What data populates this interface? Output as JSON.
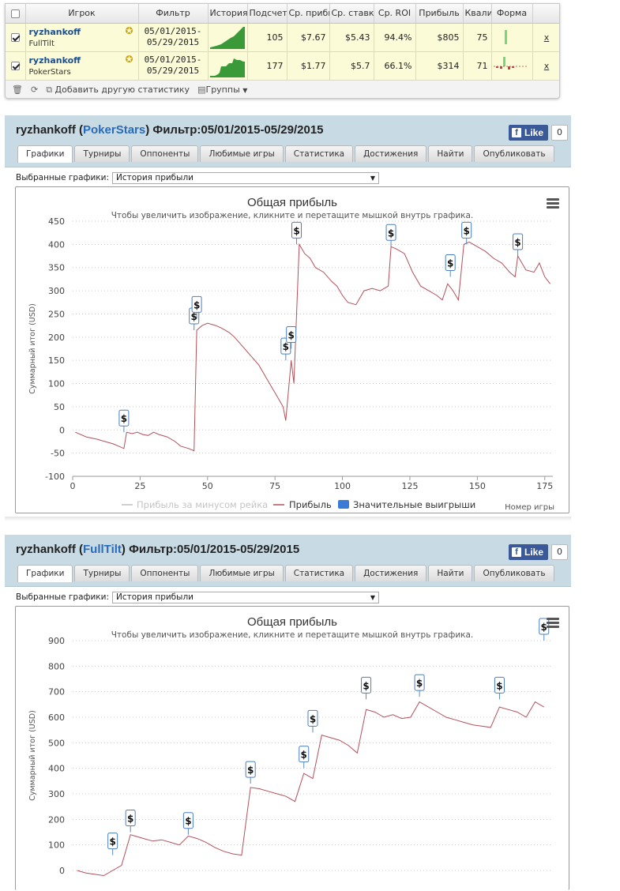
{
  "stats_table": {
    "headers": [
      "Игрок",
      "Фильтр",
      "История",
      "Подсчет",
      "Ср. прибы",
      "Ср. ставк",
      "Ср. ROI",
      "Прибыль",
      "Квалиф",
      "Форма"
    ],
    "rows": [
      {
        "player": "ryzhankoff",
        "site": "FullTilt",
        "filter": "05/01/2015-\n05/29/2015",
        "count": "105",
        "avg_profit": "$7.67",
        "avg_stake": "$5.43",
        "roi": "94.4%",
        "profit": "$805",
        "qual": "75",
        "remove": "x"
      },
      {
        "player": "ryzhankoff",
        "site": "PokerStars",
        "filter": "05/01/2015-\n05/29/2015",
        "count": "177",
        "avg_profit": "$1.77",
        "avg_stake": "$5.7",
        "roi": "66.1%",
        "profit": "$314",
        "qual": "71",
        "remove": "x"
      }
    ],
    "toolbar": {
      "add_stats": "Добавить другую статистику",
      "groups": "Группы"
    }
  },
  "sections": [
    {
      "player": "ryzhankoff",
      "site": "PokerStars",
      "filter_label": "Фильтр:05/01/2015-05/29/2015",
      "fb_like": "Like",
      "fb_count": "0",
      "tabs": [
        "Графики",
        "Турниры",
        "Оппоненты",
        "Любимые игры",
        "Статистика",
        "Достижения",
        "Найти",
        "Опубликовать"
      ],
      "select_label": "Выбранные графики:",
      "select_value": "История прибыли"
    },
    {
      "player": "ryzhankoff",
      "site": "FullTilt",
      "filter_label": "Фильтр:05/01/2015-05/29/2015",
      "fb_like": "Like",
      "fb_count": "0",
      "tabs": [
        "Графики",
        "Турниры",
        "Оппоненты",
        "Любимые игры",
        "Статистика",
        "Достижения",
        "Найти",
        "Опубликовать"
      ],
      "select_label": "Выбранные графики:",
      "select_value": "История прибыли"
    }
  ],
  "chart_data": [
    {
      "type": "line",
      "title": "Общая прибыль",
      "subtitle": "Чтобы увеличить изображение, кликните и перетащите мышкой внутрь графика.",
      "xlabel": "Номер игры",
      "ylabel": "Суммарный итог (USD)",
      "xlim": [
        0,
        178
      ],
      "ylim": [
        -100,
        450
      ],
      "yticks": [
        -100,
        -50,
        0,
        50,
        100,
        150,
        200,
        250,
        300,
        350,
        400,
        450
      ],
      "xticks": [
        0,
        25,
        50,
        75,
        100,
        125,
        150,
        175
      ],
      "legend": [
        "Прибыль за минусом рейка",
        "Прибыль",
        "Значительные выигрыши"
      ],
      "legend_placement": "bottom",
      "series_color": "#b4505a",
      "series": [
        {
          "name": "Прибыль",
          "x": [
            1,
            5,
            9,
            12,
            15,
            17,
            19,
            20,
            22,
            24,
            26,
            28,
            30,
            32,
            35,
            38,
            40,
            43,
            45,
            46,
            48,
            50,
            53,
            55,
            58,
            60,
            63,
            66,
            69,
            72,
            75,
            78,
            79,
            81,
            82,
            84,
            86,
            88,
            90,
            93,
            96,
            98,
            100,
            102,
            105,
            108,
            111,
            114,
            117,
            118,
            120,
            123,
            126,
            129,
            132,
            135,
            137,
            139,
            141,
            143,
            145,
            147,
            150,
            153,
            156,
            159,
            162,
            164,
            165,
            168,
            171,
            173,
            175,
            177
          ],
          "y": [
            -5,
            -15,
            -20,
            -25,
            -30,
            -35,
            -40,
            -5,
            -8,
            -5,
            -10,
            -12,
            -5,
            -10,
            -15,
            -25,
            -35,
            -40,
            -45,
            215,
            225,
            230,
            225,
            220,
            210,
            200,
            180,
            160,
            140,
            110,
            80,
            50,
            20,
            150,
            100,
            400,
            380,
            370,
            350,
            340,
            320,
            310,
            290,
            275,
            270,
            300,
            305,
            300,
            310,
            395,
            390,
            380,
            340,
            310,
            300,
            290,
            280,
            315,
            300,
            280,
            400,
            405,
            395,
            385,
            370,
            360,
            340,
            330,
            375,
            345,
            340,
            360,
            330,
            315
          ],
          "big_wins": [
            [
              19,
              -5
            ],
            [
              45,
              215
            ],
            [
              46,
              240
            ],
            [
              79,
              150
            ],
            [
              81,
              175
            ],
            [
              83,
              400
            ],
            [
              118,
              395
            ],
            [
              140,
              330
            ],
            [
              146,
              400
            ],
            [
              165,
              375
            ]
          ]
        }
      ]
    },
    {
      "type": "line",
      "title": "Общая прибыль",
      "subtitle": "Чтобы увеличить изображение, кликните и перетащите мышкой внутрь графика.",
      "xlabel": "Номер игры",
      "ylabel": "Суммарный итог (USD)",
      "xlim": [
        0,
        108
      ],
      "ylim": [
        0,
        900
      ],
      "yticks": [
        0,
        100,
        200,
        300,
        400,
        500,
        600,
        700,
        800,
        900
      ],
      "series_color": "#b4505a",
      "series": [
        {
          "name": "Прибыль",
          "x": [
            1,
            3,
            5,
            7,
            9,
            11,
            13,
            14,
            16,
            18,
            20,
            22,
            24,
            26,
            28,
            30,
            32,
            34,
            36,
            38,
            40,
            42,
            44,
            46,
            48,
            50,
            52,
            54,
            56,
            58,
            60,
            62,
            64,
            66,
            68,
            70,
            72,
            74,
            76,
            78,
            80,
            82,
            84,
            86,
            88,
            90,
            92,
            94,
            96,
            98,
            100,
            102,
            104,
            106
          ],
          "y": [
            0,
            -10,
            -15,
            -20,
            0,
            20,
            140,
            135,
            125,
            115,
            120,
            110,
            100,
            135,
            125,
            110,
            90,
            75,
            65,
            60,
            325,
            320,
            310,
            300,
            290,
            270,
            380,
            360,
            530,
            520,
            510,
            490,
            460,
            630,
            620,
            600,
            610,
            595,
            600,
            660,
            640,
            620,
            600,
            590,
            580,
            570,
            565,
            560,
            640,
            630,
            620,
            600,
            660,
            640
          ],
          "big_wins": [
            [
              9,
              60
            ],
            [
              13,
              150
            ],
            [
              26,
              140
            ],
            [
              40,
              340
            ],
            [
              52,
              400
            ],
            [
              54,
              540
            ],
            [
              66,
              670
            ],
            [
              78,
              680
            ],
            [
              96,
              670
            ],
            [
              106,
              900
            ]
          ]
        }
      ]
    }
  ]
}
